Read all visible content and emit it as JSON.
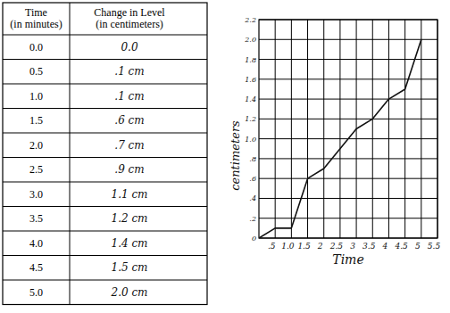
{
  "table": {
    "header": [
      [
        "Time",
        "(in minutes)"
      ],
      [
        "Change in Level",
        "(in centimeters)"
      ]
    ],
    "rows": [
      [
        "0.0",
        "0.0"
      ],
      [
        "0.5",
        ".1 cm"
      ],
      [
        "1.0",
        ".1 cm"
      ],
      [
        "1.5",
        ".6 cm"
      ],
      [
        "2.0",
        ".7 cm"
      ],
      [
        "2.5",
        ".9 cm"
      ],
      [
        "3.0",
        "1.1 cm"
      ],
      [
        "3.5",
        "1.2 cm"
      ],
      [
        "4.0",
        "1.4 cm"
      ],
      [
        "4.5",
        "1.5 cm"
      ],
      [
        "5.0",
        "2.0 cm"
      ]
    ]
  },
  "chart_data": {
    "type": "line",
    "x_label": "Time",
    "y_label": "centimeters",
    "x": [
      0,
      0.5,
      1.0,
      1.5,
      2.0,
      2.5,
      3.0,
      3.5,
      4.0,
      4.5,
      5.0
    ],
    "values": [
      0,
      0.1,
      0.1,
      0.6,
      0.7,
      0.9,
      1.1,
      1.2,
      1.4,
      1.5,
      2.0
    ],
    "color": "#111111",
    "grid": true,
    "xlim": [
      0,
      5.5
    ],
    "xticks": [
      {
        "value": 0.5,
        "label": ".5"
      },
      {
        "value": 1.0,
        "label": "1.0"
      },
      {
        "value": 1.5,
        "label": "1.5"
      },
      2,
      2.5,
      3,
      3.5,
      4,
      4.5,
      5,
      5.5
    ],
    "ylim": [
      0,
      2.2
    ],
    "yticks": [
      0,
      {
        "value": 0.2,
        "label": ".2"
      },
      {
        "value": 0.4,
        "label": ".4"
      },
      {
        "value": 0.6,
        "label": ".6"
      },
      {
        "value": 0.8,
        "label": ".8"
      },
      {
        "value": 1.0,
        "label": "1.0"
      },
      1.2,
      1.4,
      1.6,
      1.8,
      {
        "value": 2.0,
        "label": "2.0"
      },
      2.2
    ]
  }
}
